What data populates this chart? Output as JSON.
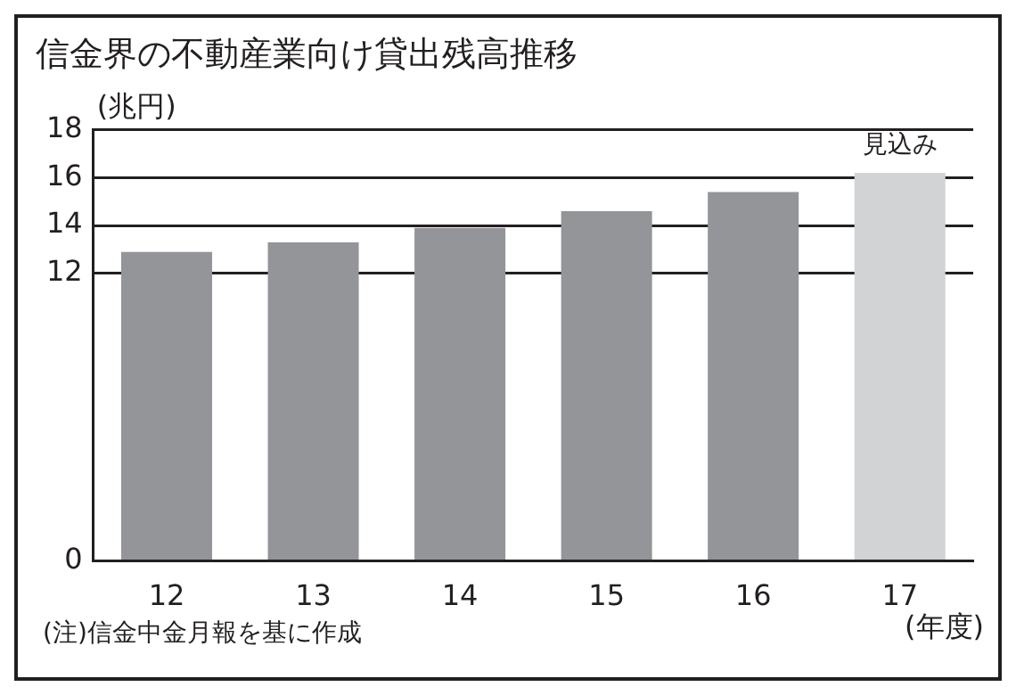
{
  "chart_data": {
    "type": "bar",
    "title": "信金界の不動産業向け貸出残高推移",
    "ylabel": "(兆円)",
    "xlabel": "(年度)",
    "categories": [
      "12",
      "13",
      "14",
      "15",
      "16",
      "17"
    ],
    "values": [
      12.9,
      13.3,
      13.9,
      14.6,
      15.4,
      16.2
    ],
    "colors": [
      "#939598",
      "#939598",
      "#939598",
      "#939598",
      "#939598",
      "#d1d3d4"
    ],
    "ylim": [
      0,
      18
    ],
    "yticks": [
      0,
      12,
      14,
      16,
      18
    ],
    "grid": "y",
    "legend": false,
    "annotations": [
      {
        "text": "見込み",
        "x": "17",
        "y": 16.2
      },
      "(注)信金中金月報を基に作成"
    ]
  }
}
